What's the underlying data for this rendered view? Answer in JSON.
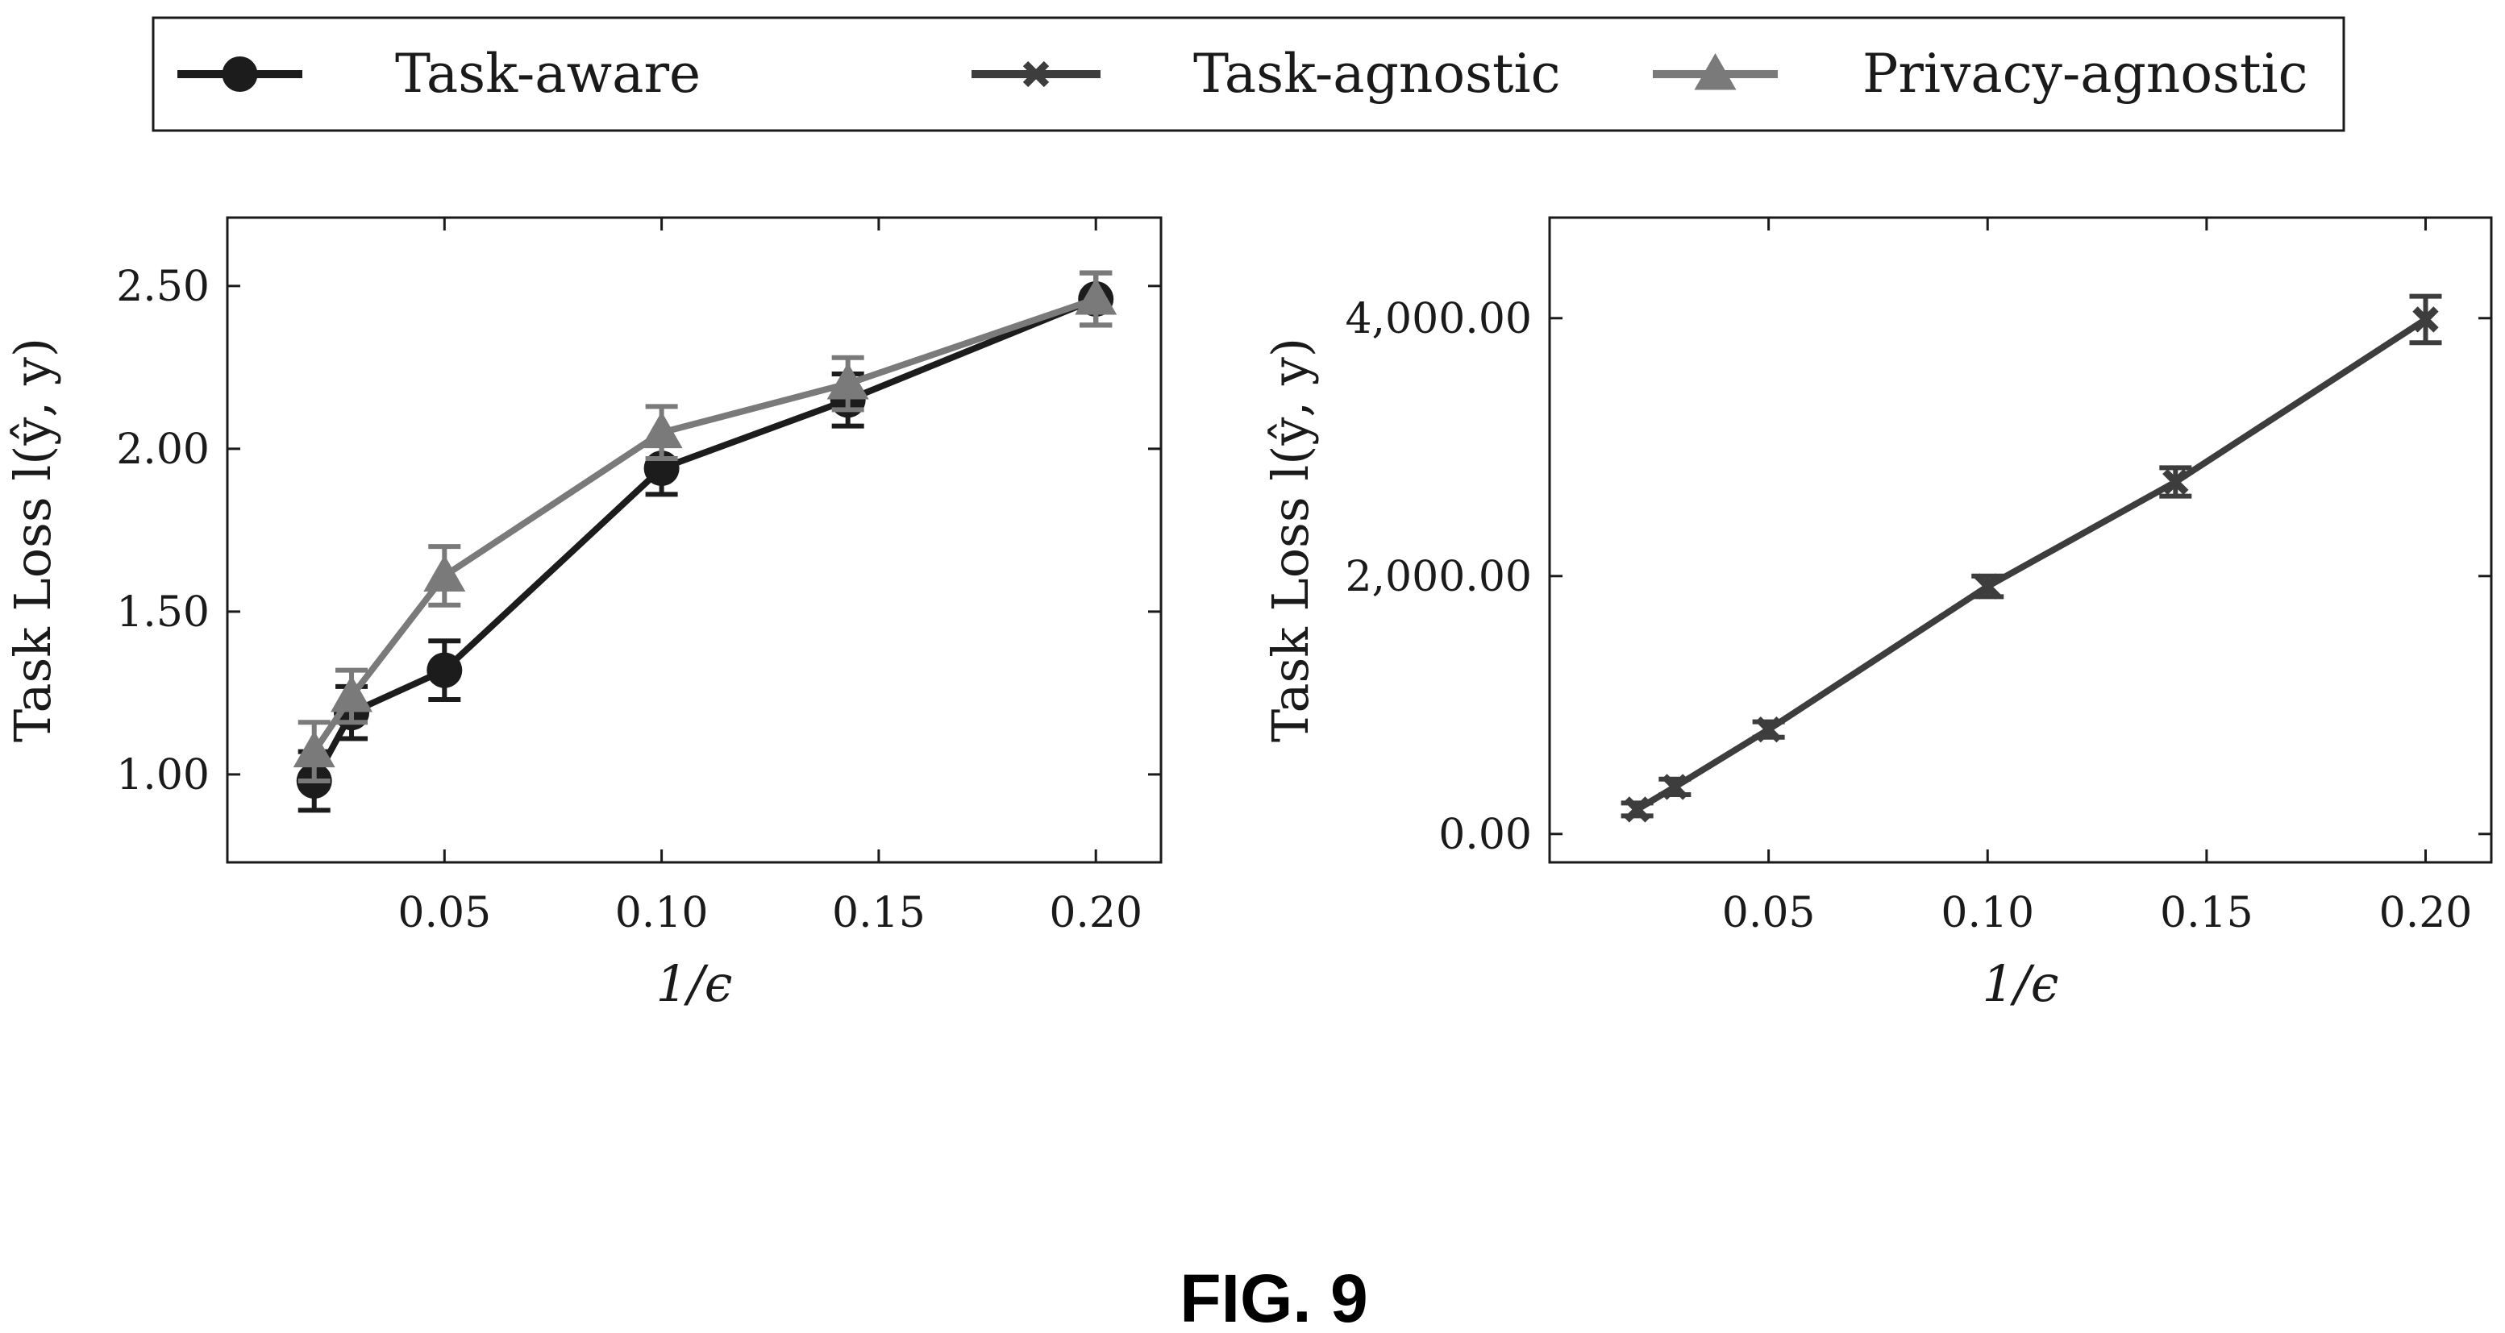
{
  "legend": {
    "items": [
      {
        "label": "Task-aware",
        "marker": "circle",
        "color": "#1c1c1c"
      },
      {
        "label": "Task-agnostic",
        "marker": "cross",
        "color": "#3d3d3d"
      },
      {
        "label": "Privacy-agnostic",
        "marker": "triangle",
        "color": "#7a7a7a"
      }
    ]
  },
  "caption": "FIG. 9",
  "chart_data": [
    {
      "type": "line",
      "xlabel": "1/ϵ",
      "ylabel": "Task Loss l(ŷ, y)",
      "xlim": [
        0,
        0.215
      ],
      "ylim": [
        0.73,
        2.71
      ],
      "xticks": [
        0.05,
        0.1,
        0.15,
        0.2
      ],
      "xtick_labels": [
        "0.05",
        "0.10",
        "0.15",
        "0.20"
      ],
      "yticks": [
        1.0,
        1.5,
        2.0,
        2.5
      ],
      "ytick_labels": [
        "1.00",
        "1.50",
        "2.00",
        "2.50"
      ],
      "grid": false,
      "series": [
        {
          "name": "Task-aware",
          "color": "#1c1c1c",
          "marker": "circle",
          "points": [
            {
              "x": 0.02,
              "y": 0.98,
              "err": 0.09
            },
            {
              "x": 0.0286,
              "y": 1.19,
              "err": 0.08
            },
            {
              "x": 0.05,
              "y": 1.32,
              "err": 0.09
            },
            {
              "x": 0.1,
              "y": 1.94,
              "err": 0.08
            },
            {
              "x": 0.1429,
              "y": 2.15,
              "err": 0.08
            },
            {
              "x": 0.2,
              "y": 2.46,
              "err": 0.08
            }
          ]
        },
        {
          "name": "Privacy-agnostic",
          "color": "#7a7a7a",
          "marker": "triangle",
          "points": [
            {
              "x": 0.02,
              "y": 1.07,
              "err": 0.09
            },
            {
              "x": 0.0286,
              "y": 1.24,
              "err": 0.08
            },
            {
              "x": 0.05,
              "y": 1.61,
              "err": 0.09
            },
            {
              "x": 0.1,
              "y": 2.05,
              "err": 0.08
            },
            {
              "x": 0.1429,
              "y": 2.2,
              "err": 0.08
            },
            {
              "x": 0.2,
              "y": 2.46,
              "err": 0.08
            }
          ]
        }
      ]
    },
    {
      "type": "line",
      "xlabel": "1/ϵ",
      "ylabel": "Task Loss l(ŷ, y)",
      "xlim": [
        0,
        0.215
      ],
      "ylim": [
        -220,
        4780
      ],
      "xticks": [
        0.05,
        0.1,
        0.15,
        0.2
      ],
      "xtick_labels": [
        "0.05",
        "0.10",
        "0.15",
        "0.20"
      ],
      "yticks": [
        0,
        2000,
        4000
      ],
      "ytick_labels": [
        "0.00",
        "2,000.00",
        "4,000.00"
      ],
      "grid": false,
      "series": [
        {
          "name": "Task-agnostic",
          "color": "#3d3d3d",
          "marker": "cross",
          "points": [
            {
              "x": 0.02,
              "y": 190,
              "err": 50
            },
            {
              "x": 0.0286,
              "y": 365,
              "err": 60
            },
            {
              "x": 0.05,
              "y": 810,
              "err": 60
            },
            {
              "x": 0.1,
              "y": 1920,
              "err": 80
            },
            {
              "x": 0.1429,
              "y": 2730,
              "err": 110
            },
            {
              "x": 0.2,
              "y": 3990,
              "err": 180
            }
          ]
        }
      ]
    }
  ]
}
